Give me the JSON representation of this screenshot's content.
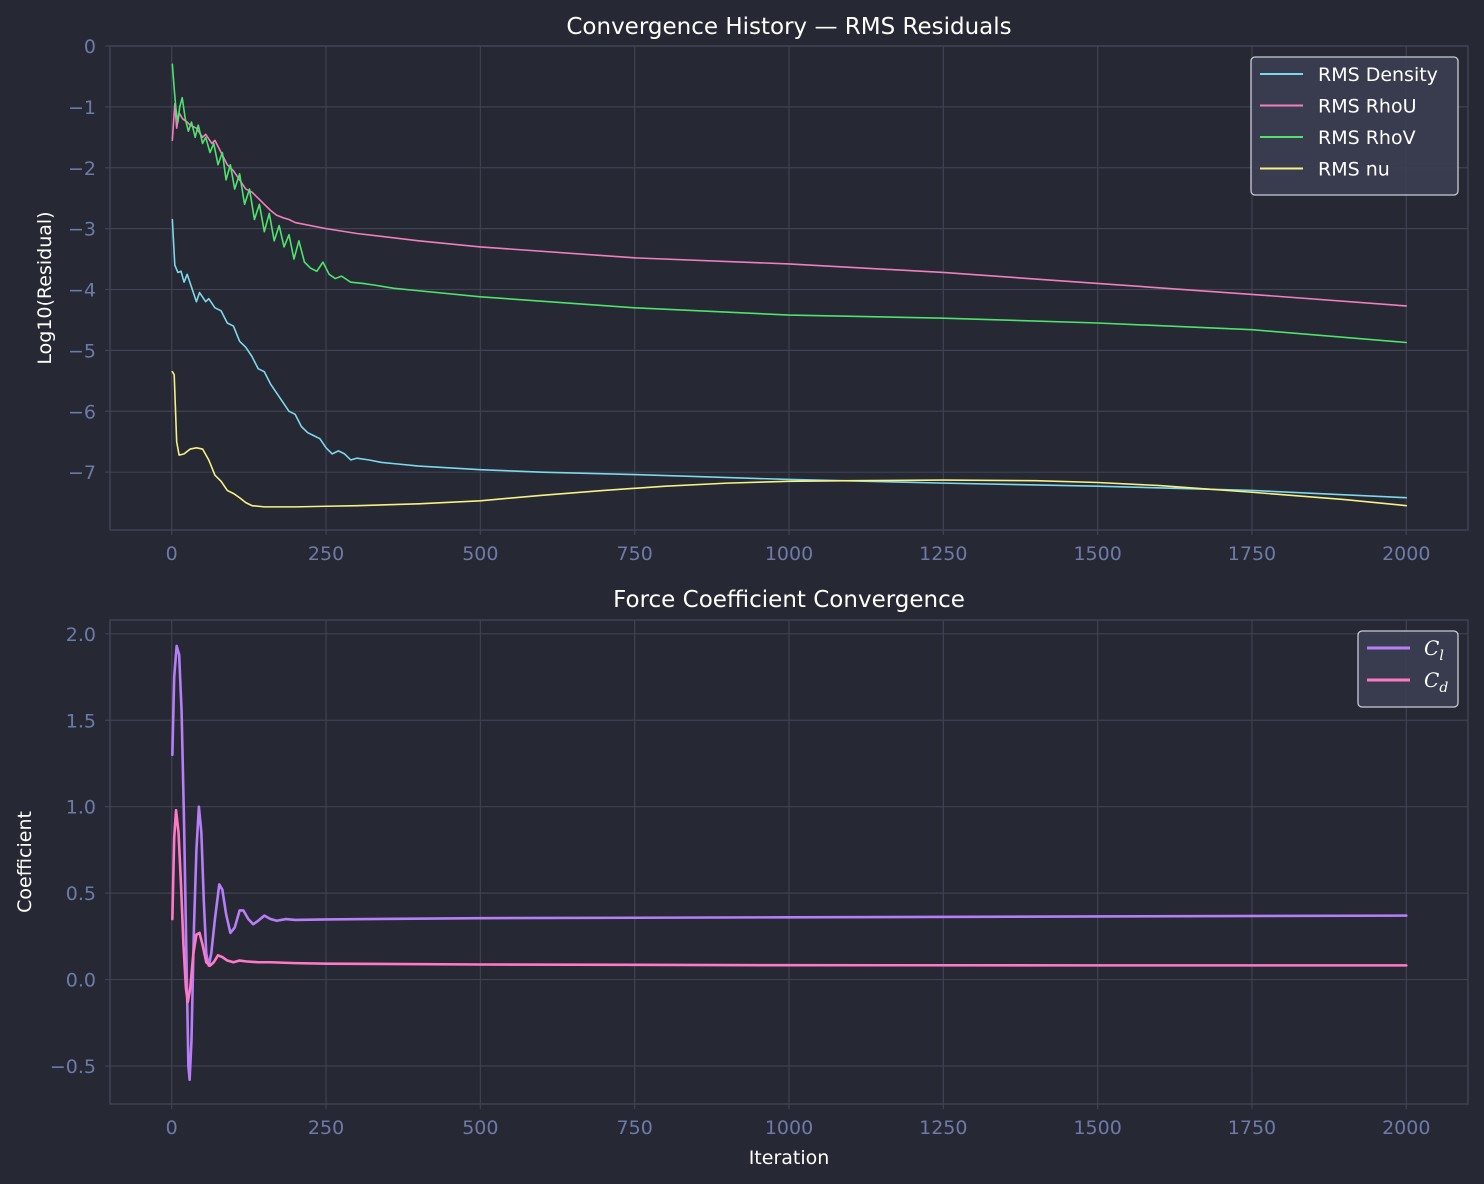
{
  "colors": {
    "background": "#262833",
    "grid": "#3e4252",
    "spine": "#3e4252",
    "tick_text": "#6f7aab",
    "legend_bg": "#3b3e51",
    "legend_border": "#c9ccd8"
  },
  "chart_data": [
    {
      "type": "line",
      "title": "Convergence History — RMS Residuals",
      "xlabel": "",
      "ylabel": "Log10(Residual)",
      "xlim": [
        -100,
        2100
      ],
      "ylim": [
        -7.95,
        0
      ],
      "x_ticks": [
        0,
        250,
        500,
        750,
        1000,
        1250,
        1500,
        1750,
        2000
      ],
      "x_tick_labels": [
        "0",
        "250",
        "500",
        "750",
        "1000",
        "1250",
        "1500",
        "1750",
        "2000"
      ],
      "y_ticks": [
        0,
        -1,
        -2,
        -3,
        -4,
        -5,
        -6,
        -7
      ],
      "y_tick_labels": [
        "0",
        "−1",
        "−2",
        "−3",
        "−4",
        "−5",
        "−6",
        "−7"
      ],
      "grid": true,
      "legend": "top-right",
      "series": [
        {
          "name": "RMS Density",
          "color": "#7dd8ec",
          "points": [
            [
              1,
              -2.85
            ],
            [
              5,
              -3.6
            ],
            [
              10,
              -3.72
            ],
            [
              15,
              -3.7
            ],
            [
              20,
              -3.88
            ],
            [
              25,
              -3.75
            ],
            [
              30,
              -3.9
            ],
            [
              40,
              -4.2
            ],
            [
              45,
              -4.05
            ],
            [
              55,
              -4.2
            ],
            [
              60,
              -4.15
            ],
            [
              70,
              -4.3
            ],
            [
              80,
              -4.35
            ],
            [
              90,
              -4.55
            ],
            [
              100,
              -4.6
            ],
            [
              110,
              -4.85
            ],
            [
              120,
              -4.95
            ],
            [
              130,
              -5.1
            ],
            [
              140,
              -5.3
            ],
            [
              150,
              -5.35
            ],
            [
              160,
              -5.55
            ],
            [
              170,
              -5.7
            ],
            [
              180,
              -5.85
            ],
            [
              190,
              -6.0
            ],
            [
              200,
              -6.05
            ],
            [
              210,
              -6.25
            ],
            [
              220,
              -6.35
            ],
            [
              230,
              -6.4
            ],
            [
              240,
              -6.45
            ],
            [
              250,
              -6.6
            ],
            [
              260,
              -6.7
            ],
            [
              270,
              -6.65
            ],
            [
              280,
              -6.7
            ],
            [
              290,
              -6.8
            ],
            [
              300,
              -6.77
            ],
            [
              320,
              -6.8
            ],
            [
              340,
              -6.84
            ],
            [
              360,
              -6.86
            ],
            [
              400,
              -6.9
            ],
            [
              500,
              -6.96
            ],
            [
              600,
              -7.0
            ],
            [
              750,
              -7.04
            ],
            [
              1000,
              -7.12
            ],
            [
              1250,
              -7.18
            ],
            [
              1500,
              -7.23
            ],
            [
              1750,
              -7.3
            ],
            [
              2000,
              -7.42
            ]
          ]
        },
        {
          "name": "RMS RhoU",
          "color": "#f07fc0",
          "points": [
            [
              1,
              -1.55
            ],
            [
              5,
              -0.95
            ],
            [
              8,
              -1.35
            ],
            [
              12,
              -1.1
            ],
            [
              18,
              -1.2
            ],
            [
              25,
              -1.25
            ],
            [
              30,
              -1.3
            ],
            [
              40,
              -1.35
            ],
            [
              50,
              -1.5
            ],
            [
              55,
              -1.45
            ],
            [
              65,
              -1.6
            ],
            [
              70,
              -1.55
            ],
            [
              80,
              -1.75
            ],
            [
              90,
              -1.95
            ],
            [
              100,
              -2.05
            ],
            [
              110,
              -2.2
            ],
            [
              120,
              -2.35
            ],
            [
              130,
              -2.4
            ],
            [
              140,
              -2.5
            ],
            [
              150,
              -2.6
            ],
            [
              160,
              -2.7
            ],
            [
              170,
              -2.78
            ],
            [
              180,
              -2.82
            ],
            [
              190,
              -2.85
            ],
            [
              200,
              -2.9
            ],
            [
              250,
              -3.0
            ],
            [
              300,
              -3.08
            ],
            [
              400,
              -3.2
            ],
            [
              500,
              -3.3
            ],
            [
              750,
              -3.48
            ],
            [
              1000,
              -3.58
            ],
            [
              1250,
              -3.72
            ],
            [
              1500,
              -3.9
            ],
            [
              1750,
              -4.08
            ],
            [
              2000,
              -4.27
            ]
          ]
        },
        {
          "name": "RMS RhoV",
          "color": "#4ee36d",
          "points": [
            [
              1,
              -0.3
            ],
            [
              4,
              -0.7
            ],
            [
              7,
              -1.05
            ],
            [
              10,
              -1.25
            ],
            [
              13,
              -1.0
            ],
            [
              17,
              -0.85
            ],
            [
              22,
              -1.2
            ],
            [
              27,
              -1.4
            ],
            [
              32,
              -1.25
            ],
            [
              38,
              -1.5
            ],
            [
              43,
              -1.3
            ],
            [
              50,
              -1.6
            ],
            [
              55,
              -1.5
            ],
            [
              62,
              -1.75
            ],
            [
              68,
              -1.6
            ],
            [
              75,
              -1.95
            ],
            [
              82,
              -1.75
            ],
            [
              88,
              -2.2
            ],
            [
              95,
              -1.95
            ],
            [
              102,
              -2.35
            ],
            [
              110,
              -2.1
            ],
            [
              118,
              -2.6
            ],
            [
              126,
              -2.35
            ],
            [
              134,
              -2.85
            ],
            [
              142,
              -2.6
            ],
            [
              150,
              -3.05
            ],
            [
              158,
              -2.75
            ],
            [
              166,
              -3.2
            ],
            [
              174,
              -2.95
            ],
            [
              182,
              -3.3
            ],
            [
              190,
              -3.1
            ],
            [
              198,
              -3.5
            ],
            [
              206,
              -3.2
            ],
            [
              215,
              -3.55
            ],
            [
              225,
              -3.65
            ],
            [
              235,
              -3.7
            ],
            [
              245,
              -3.55
            ],
            [
              255,
              -3.75
            ],
            [
              265,
              -3.82
            ],
            [
              275,
              -3.78
            ],
            [
              290,
              -3.88
            ],
            [
              310,
              -3.9
            ],
            [
              330,
              -3.93
            ],
            [
              360,
              -3.98
            ],
            [
              400,
              -4.02
            ],
            [
              500,
              -4.12
            ],
            [
              750,
              -4.3
            ],
            [
              1000,
              -4.42
            ],
            [
              1250,
              -4.47
            ],
            [
              1500,
              -4.55
            ],
            [
              1750,
              -4.66
            ],
            [
              2000,
              -4.87
            ]
          ]
        },
        {
          "name": "RMS nu",
          "color": "#f5f283",
          "points": [
            [
              1,
              -5.35
            ],
            [
              4,
              -5.4
            ],
            [
              8,
              -6.5
            ],
            [
              12,
              -6.72
            ],
            [
              20,
              -6.7
            ],
            [
              30,
              -6.62
            ],
            [
              40,
              -6.6
            ],
            [
              50,
              -6.62
            ],
            [
              60,
              -6.8
            ],
            [
              70,
              -7.05
            ],
            [
              80,
              -7.15
            ],
            [
              90,
              -7.3
            ],
            [
              100,
              -7.35
            ],
            [
              110,
              -7.42
            ],
            [
              120,
              -7.5
            ],
            [
              130,
              -7.55
            ],
            [
              150,
              -7.57
            ],
            [
              200,
              -7.57
            ],
            [
              250,
              -7.56
            ],
            [
              300,
              -7.55
            ],
            [
              400,
              -7.52
            ],
            [
              500,
              -7.47
            ],
            [
              600,
              -7.38
            ],
            [
              700,
              -7.3
            ],
            [
              800,
              -7.23
            ],
            [
              900,
              -7.18
            ],
            [
              1000,
              -7.15
            ],
            [
              1100,
              -7.14
            ],
            [
              1250,
              -7.13
            ],
            [
              1400,
              -7.14
            ],
            [
              1500,
              -7.17
            ],
            [
              1600,
              -7.22
            ],
            [
              1750,
              -7.33
            ],
            [
              1900,
              -7.45
            ],
            [
              2000,
              -7.55
            ]
          ]
        }
      ]
    },
    {
      "type": "line",
      "title": "Force Coefficient Convergence",
      "xlabel": "Iteration",
      "ylabel": "Coefficient",
      "xlim": [
        -100,
        2100
      ],
      "ylim": [
        -0.72,
        2.08
      ],
      "x_ticks": [
        0,
        250,
        500,
        750,
        1000,
        1250,
        1500,
        1750,
        2000
      ],
      "x_tick_labels": [
        "0",
        "250",
        "500",
        "750",
        "1000",
        "1250",
        "1500",
        "1750",
        "2000"
      ],
      "y_ticks": [
        2.0,
        1.5,
        1.0,
        0.5,
        0.0,
        -0.5
      ],
      "y_tick_labels": [
        "2.0",
        "1.5",
        "1.0",
        "0.5",
        "0.0",
        "−0.5"
      ],
      "grid": true,
      "legend": "top-right",
      "series": [
        {
          "name": "C_l",
          "legend_main": "C",
          "legend_sub": "l",
          "color": "#b77ef7",
          "points": [
            [
              1,
              1.3
            ],
            [
              4,
              1.75
            ],
            [
              8,
              1.93
            ],
            [
              12,
              1.88
            ],
            [
              16,
              1.55
            ],
            [
              20,
              0.9
            ],
            [
              24,
              0.1
            ],
            [
              27,
              -0.5
            ],
            [
              29,
              -0.58
            ],
            [
              32,
              -0.35
            ],
            [
              36,
              0.3
            ],
            [
              40,
              0.75
            ],
            [
              44,
              1.0
            ],
            [
              48,
              0.85
            ],
            [
              52,
              0.45
            ],
            [
              56,
              0.15
            ],
            [
              60,
              0.08
            ],
            [
              64,
              0.15
            ],
            [
              70,
              0.35
            ],
            [
              77,
              0.55
            ],
            [
              82,
              0.52
            ],
            [
              88,
              0.38
            ],
            [
              95,
              0.27
            ],
            [
              102,
              0.3
            ],
            [
              110,
              0.4
            ],
            [
              116,
              0.4
            ],
            [
              124,
              0.35
            ],
            [
              132,
              0.32
            ],
            [
              140,
              0.34
            ],
            [
              150,
              0.37
            ],
            [
              160,
              0.35
            ],
            [
              170,
              0.34
            ],
            [
              185,
              0.35
            ],
            [
              200,
              0.345
            ],
            [
              250,
              0.348
            ],
            [
              500,
              0.355
            ],
            [
              1000,
              0.36
            ],
            [
              1500,
              0.365
            ],
            [
              2000,
              0.37
            ]
          ]
        },
        {
          "name": "C_d",
          "legend_main": "C",
          "legend_sub": "d",
          "color": "#ff7ac6",
          "points": [
            [
              1,
              0.35
            ],
            [
              4,
              0.82
            ],
            [
              7,
              0.98
            ],
            [
              11,
              0.85
            ],
            [
              15,
              0.55
            ],
            [
              19,
              0.2
            ],
            [
              23,
              -0.05
            ],
            [
              26,
              -0.13
            ],
            [
              30,
              -0.05
            ],
            [
              35,
              0.15
            ],
            [
              40,
              0.26
            ],
            [
              45,
              0.27
            ],
            [
              50,
              0.2
            ],
            [
              56,
              0.1
            ],
            [
              62,
              0.08
            ],
            [
              68,
              0.1
            ],
            [
              75,
              0.14
            ],
            [
              82,
              0.13
            ],
            [
              90,
              0.11
            ],
            [
              100,
              0.1
            ],
            [
              110,
              0.11
            ],
            [
              120,
              0.105
            ],
            [
              140,
              0.1
            ],
            [
              160,
              0.1
            ],
            [
              200,
              0.095
            ],
            [
              250,
              0.092
            ],
            [
              500,
              0.087
            ],
            [
              1000,
              0.083
            ],
            [
              1500,
              0.082
            ],
            [
              2000,
              0.082
            ]
          ]
        }
      ]
    }
  ]
}
